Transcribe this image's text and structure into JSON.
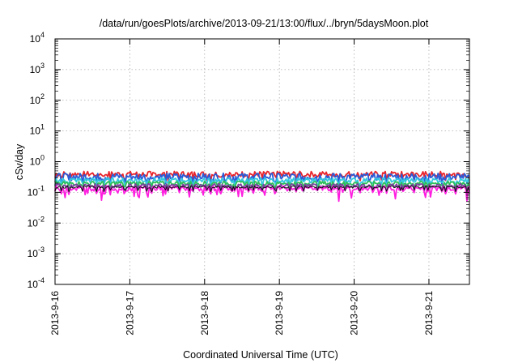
{
  "chart_data": {
    "type": "line",
    "title": "/data/run/goesPlots/archive/2013-09-21/13:00/flux/../bryn/5daysMoon.plot",
    "xlabel": "Coordinated Universal Time (UTC)",
    "ylabel": "cSv/day",
    "y_scale": "log",
    "ylim": [
      0.0001,
      10000
    ],
    "y_ticks": [
      {
        "value": 0.0001,
        "base": "10",
        "exp": "-4"
      },
      {
        "value": 0.001,
        "base": "10",
        "exp": "-3"
      },
      {
        "value": 0.01,
        "base": "10",
        "exp": "-2"
      },
      {
        "value": 0.1,
        "base": "10",
        "exp": "-1"
      },
      {
        "value": 1,
        "base": "10",
        "exp": "0"
      },
      {
        "value": 10,
        "base": "10",
        "exp": "1"
      },
      {
        "value": 100,
        "base": "10",
        "exp": "2"
      },
      {
        "value": 1000,
        "base": "10",
        "exp": "3"
      },
      {
        "value": 10000,
        "base": "10",
        "exp": "4"
      }
    ],
    "x_start": "2013-09-16 00:00",
    "x_end": "2013-09-21 13:00",
    "x_ticks": [
      "2013-9-16",
      "2013-9-17",
      "2013-9-18",
      "2013-9-19",
      "2013-9-20",
      "2013-9-21"
    ],
    "grid": true,
    "series": [
      {
        "color": "#e8242b",
        "level": 0.4,
        "wiggle": 0.07,
        "dips": false
      },
      {
        "color": "#2a5bd7",
        "level": 0.33,
        "wiggle": 0.09,
        "dips": false
      },
      {
        "color": "#33c9e0",
        "level": 0.25,
        "wiggle": 0.06,
        "dips": false
      },
      {
        "color": "#2fbf5a",
        "level": 0.2,
        "wiggle": 0.05,
        "dips": false
      },
      {
        "color": "#7a3fa0",
        "level": 0.165,
        "wiggle": 0.05,
        "dips": false
      },
      {
        "color": "#ff1ee0",
        "level": 0.135,
        "wiggle": 0.06,
        "dips": true
      },
      {
        "color": "#111111",
        "level": 0.15,
        "wiggle": 0.03,
        "dips": false
      }
    ]
  }
}
